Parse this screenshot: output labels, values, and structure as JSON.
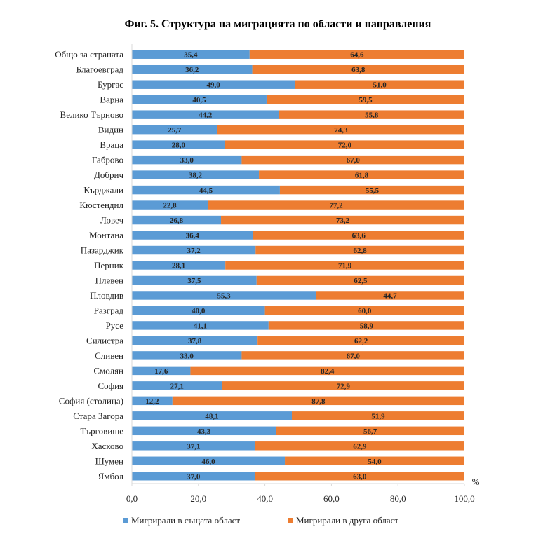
{
  "chart_data": {
    "type": "bar",
    "orientation": "horizontal",
    "stacked": true,
    "title": "Фиг.  5. Структура на миграцията по области и направления",
    "xlabel": "",
    "ylabel": "",
    "x_unit": "%",
    "xlim": [
      0,
      100
    ],
    "x_ticks": [
      "0,0",
      "20,0",
      "40,0",
      "60,0",
      "80,0",
      "100,0"
    ],
    "grid": false,
    "legend_position": "bottom",
    "categories": [
      "Общо за страната",
      "Благоевград",
      "Бургас",
      "Варна",
      "Велико Търново",
      "Видин",
      "Враца",
      "Габрово",
      "Добрич",
      "Кърджали",
      "Кюстендил",
      "Ловеч",
      "Монтана",
      "Пазарджик",
      "Перник",
      "Плевен",
      "Пловдив",
      "Разград",
      "Русе",
      "Силистра",
      "Сливен",
      "Смолян",
      "София",
      "София (столица)",
      "Стара Загора",
      "Търговище",
      "Хасково",
      "Шумен",
      "Ямбол"
    ],
    "series": [
      {
        "name": "Мигрирали в същата област",
        "color": "#5B9BD5",
        "values": [
          35.4,
          36.2,
          49.0,
          40.5,
          44.2,
          25.7,
          28.0,
          33.0,
          38.2,
          44.5,
          22.8,
          26.8,
          36.4,
          37.2,
          28.1,
          37.5,
          55.3,
          40.0,
          41.1,
          37.8,
          33.0,
          17.6,
          27.1,
          12.2,
          48.1,
          43.3,
          37.1,
          46.0,
          37.0
        ],
        "labels": [
          "35,4",
          "36,2",
          "49,0",
          "40,5",
          "44,2",
          "25,7",
          "28,0",
          "33,0",
          "38,2",
          "44,5",
          "22,8",
          "26,8",
          "36,4",
          "37,2",
          "28,1",
          "37,5",
          "55,3",
          "40,0",
          "41,1",
          "37,8",
          "33,0",
          "17,6",
          "27,1",
          "12,2",
          "48,1",
          "43,3",
          "37,1",
          "46,0",
          "37,0"
        ]
      },
      {
        "name": "Мигрирали в друга област",
        "color": "#ED7D31",
        "values": [
          64.6,
          63.8,
          51.0,
          59.5,
          55.8,
          74.3,
          72.0,
          67.0,
          61.8,
          55.5,
          77.2,
          73.2,
          63.6,
          62.8,
          71.9,
          62.5,
          44.7,
          60.0,
          58.9,
          62.2,
          67.0,
          82.4,
          72.9,
          87.8,
          51.9,
          56.7,
          62.9,
          54.0,
          63.0
        ],
        "labels": [
          "64,6",
          "63,8",
          "51,0",
          "59,5",
          "55,8",
          "74,3",
          "72,0",
          "67,0",
          "61,8",
          "55,5",
          "77,2",
          "73,2",
          "63,6",
          "62,8",
          "71,9",
          "62,5",
          "44,7",
          "60,0",
          "58,9",
          "62,2",
          "67,0",
          "82,4",
          "72,9",
          "87,8",
          "51,9",
          "56,7",
          "62,9",
          "54,0",
          "63,0"
        ]
      }
    ]
  }
}
